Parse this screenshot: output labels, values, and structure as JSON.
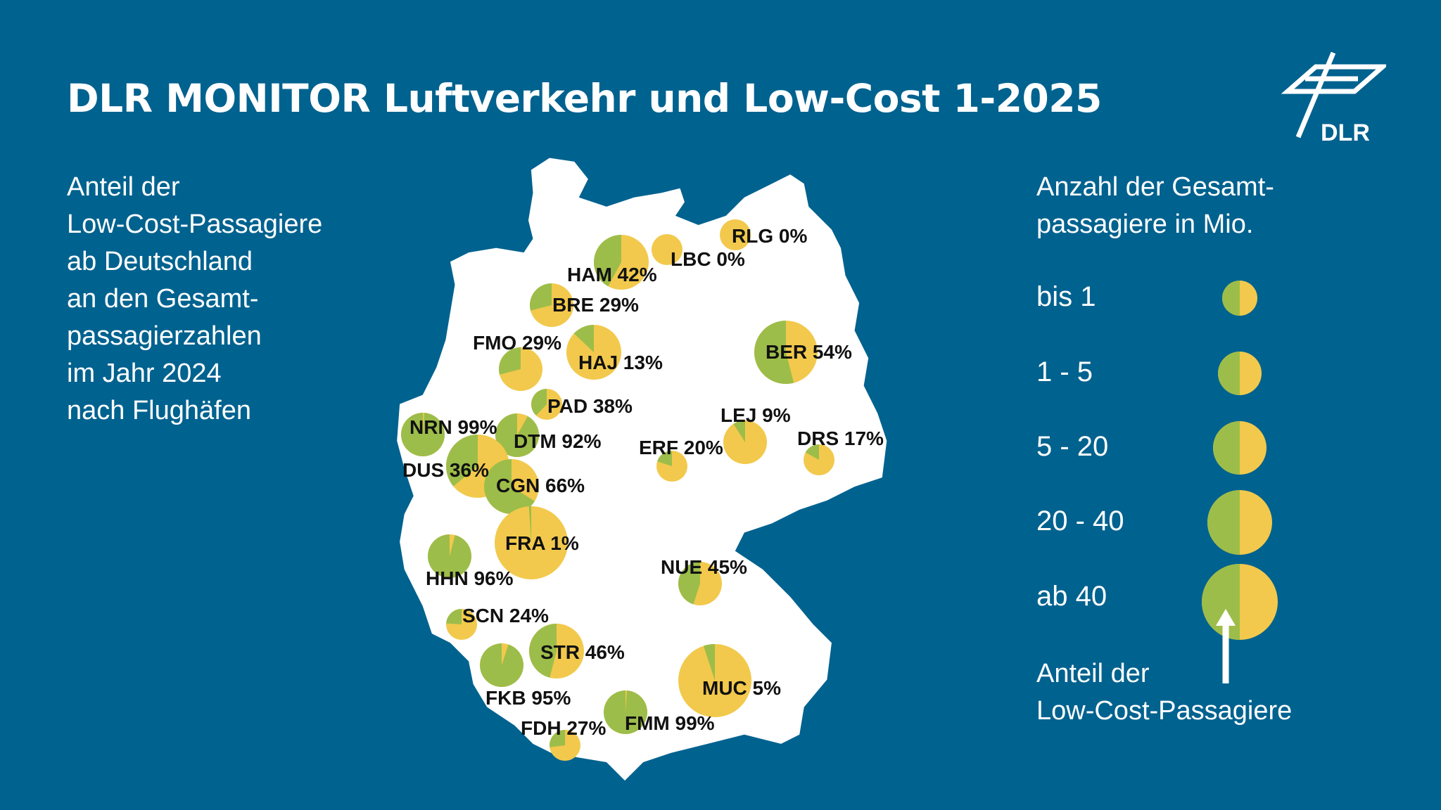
{
  "title": "DLR MONITOR Luftverkehr und Low-Cost 1-2025",
  "subtitle_lines": [
    "Anteil der",
    "Low-Cost-Passagiere",
    "ab Deutschland",
    "an den Gesamt-",
    "passagierzahlen",
    "im Jahr 2024",
    "nach Flughäfen"
  ],
  "logo_text": "DLR",
  "colors": {
    "background": "#00628f",
    "land": "#ffffff",
    "low_cost": "#9dbd4a",
    "other": "#f2c94c"
  },
  "legend": {
    "title_lines": [
      "Anzahl der Gesamt-",
      "passagiere in Mio."
    ],
    "classes": [
      {
        "label": "bis 1",
        "share": 0.5
      },
      {
        "label": "1 - 5",
        "share": 0.5
      },
      {
        "label": "5 - 20",
        "share": 0.5
      },
      {
        "label": "20 - 40",
        "share": 0.5
      },
      {
        "label": "ab 40",
        "share": 0.5
      }
    ],
    "note_lines": [
      "Anteil der",
      "Low-Cost-Passagiere"
    ]
  },
  "airports": [
    {
      "code": "RLG",
      "label": "RLG 0%",
      "low_cost_pct": 0,
      "size_class": 0
    },
    {
      "code": "LBC",
      "label": "LBC 0%",
      "low_cost_pct": 0,
      "size_class": 0
    },
    {
      "code": "HAM",
      "label": "HAM 42%",
      "low_cost_pct": 42,
      "size_class": 2
    },
    {
      "code": "BRE",
      "label": "BRE 29%",
      "low_cost_pct": 29,
      "size_class": 1
    },
    {
      "code": "HAJ",
      "label": "HAJ 13%",
      "low_cost_pct": 13,
      "size_class": 2
    },
    {
      "code": "FMO",
      "label": "FMO 29%",
      "low_cost_pct": 29,
      "size_class": 1
    },
    {
      "code": "BER",
      "label": "BER 54%",
      "low_cost_pct": 54,
      "size_class": 3
    },
    {
      "code": "PAD",
      "label": "PAD 38%",
      "low_cost_pct": 38,
      "size_class": 0
    },
    {
      "code": "NRN",
      "label": "NRN 99%",
      "low_cost_pct": 99,
      "size_class": 1
    },
    {
      "code": "DTM",
      "label": "DTM 92%",
      "low_cost_pct": 92,
      "size_class": 1
    },
    {
      "code": "DUS",
      "label": "DUS 36%",
      "low_cost_pct": 36,
      "size_class": 3
    },
    {
      "code": "CGN",
      "label": "CGN 66%",
      "low_cost_pct": 66,
      "size_class": 2
    },
    {
      "code": "ERF",
      "label": "ERF 20%",
      "low_cost_pct": 20,
      "size_class": 0
    },
    {
      "code": "LEJ",
      "label": "LEJ 9%",
      "low_cost_pct": 9,
      "size_class": 1
    },
    {
      "code": "DRS",
      "label": "DRS 17%",
      "low_cost_pct": 17,
      "size_class": 0
    },
    {
      "code": "FRA",
      "label": "FRA 1%",
      "low_cost_pct": 1,
      "size_class": 4
    },
    {
      "code": "HHN",
      "label": "HHN 96%",
      "low_cost_pct": 96,
      "size_class": 1
    },
    {
      "code": "NUE",
      "label": "NUE 45%",
      "low_cost_pct": 45,
      "size_class": 1
    },
    {
      "code": "SCN",
      "label": "SCN 24%",
      "low_cost_pct": 24,
      "size_class": 0
    },
    {
      "code": "STR",
      "label": "STR 46%",
      "low_cost_pct": 46,
      "size_class": 2
    },
    {
      "code": "FKB",
      "label": "FKB 95%",
      "low_cost_pct": 95,
      "size_class": 1
    },
    {
      "code": "MUC",
      "label": "MUC 5%",
      "low_cost_pct": 5,
      "size_class": 4
    },
    {
      "code": "FMM",
      "label": "FMM 99%",
      "low_cost_pct": 99,
      "size_class": 1
    },
    {
      "code": "FDH",
      "label": "FDH 27%",
      "low_cost_pct": 27,
      "size_class": 0
    }
  ]
}
